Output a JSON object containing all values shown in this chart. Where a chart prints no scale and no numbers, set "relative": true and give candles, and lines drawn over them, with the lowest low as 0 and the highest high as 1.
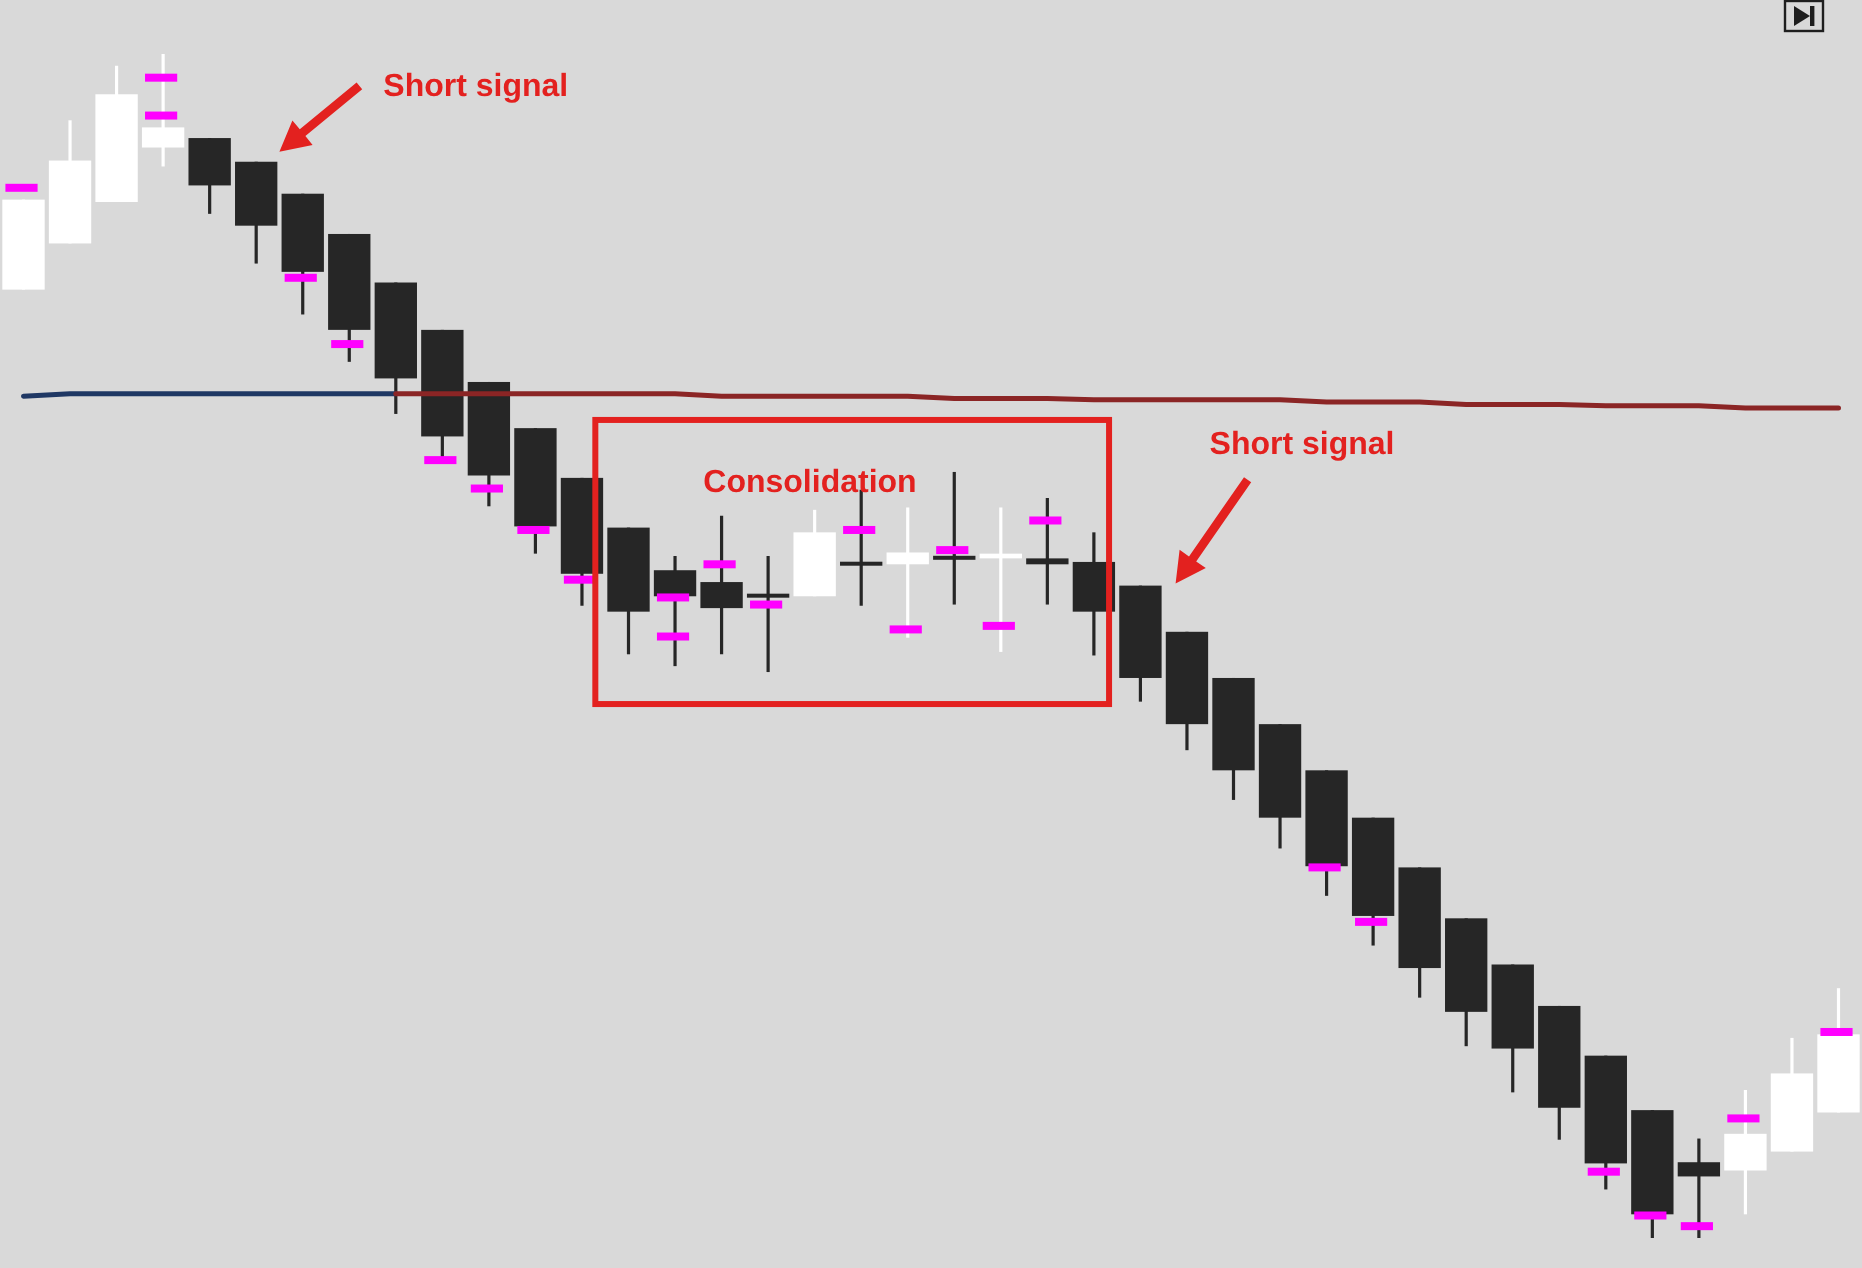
{
  "chart_data": {
    "type": "candlestick",
    "relative": true,
    "categories": [
      null,
      null,
      null,
      null,
      null,
      null,
      null,
      null,
      null,
      null,
      null,
      null,
      null,
      null,
      null,
      null,
      null,
      null,
      null,
      null,
      null,
      null,
      null,
      null,
      null,
      null,
      null,
      null,
      null,
      null,
      null,
      null,
      null,
      null,
      null,
      null,
      null,
      null,
      null,
      null
    ],
    "ohlc": [
      [
        0.801,
        0.877,
        0.801,
        0.877
      ],
      [
        0.84,
        0.944,
        0.84,
        0.91
      ],
      [
        0.875,
        0.99,
        0.875,
        0.966
      ],
      [
        0.921,
        1.0,
        0.905,
        0.938
      ],
      [
        0.929,
        0.929,
        0.865,
        0.889
      ],
      [
        0.909,
        0.909,
        0.823,
        0.855
      ],
      [
        0.882,
        0.882,
        0.78,
        0.816
      ],
      [
        0.848,
        0.848,
        0.74,
        0.767
      ],
      [
        0.807,
        0.807,
        0.696,
        0.726
      ],
      [
        0.767,
        0.767,
        0.657,
        0.677
      ],
      [
        0.723,
        0.723,
        0.618,
        0.644
      ],
      [
        0.684,
        0.684,
        0.578,
        0.601
      ],
      [
        0.642,
        0.642,
        0.534,
        0.561
      ],
      [
        0.6,
        0.6,
        0.493,
        0.529
      ],
      [
        0.564,
        0.576,
        0.483,
        0.542
      ],
      [
        0.554,
        0.61,
        0.493,
        0.532
      ],
      [
        0.544,
        0.576,
        0.478,
        0.541
      ],
      [
        0.542,
        0.615,
        0.542,
        0.596
      ],
      [
        0.571,
        0.632,
        0.534,
        0.568
      ],
      [
        0.569,
        0.617,
        0.507,
        0.579
      ],
      [
        0.576,
        0.647,
        0.535,
        0.573
      ],
      [
        0.574,
        0.617,
        0.495,
        0.578
      ],
      [
        0.574,
        0.625,
        0.535,
        0.569
      ],
      [
        0.571,
        0.596,
        0.492,
        0.529
      ],
      [
        0.551,
        0.551,
        0.453,
        0.473
      ],
      [
        0.512,
        0.512,
        0.412,
        0.434
      ],
      [
        0.473,
        0.473,
        0.37,
        0.395
      ],
      [
        0.434,
        0.434,
        0.329,
        0.355
      ],
      [
        0.395,
        0.395,
        0.289,
        0.314
      ],
      [
        0.355,
        0.355,
        0.247,
        0.272
      ],
      [
        0.313,
        0.313,
        0.203,
        0.228
      ],
      [
        0.27,
        0.27,
        0.162,
        0.191
      ],
      [
        0.231,
        0.231,
        0.123,
        0.16
      ],
      [
        0.196,
        0.196,
        0.083,
        0.11
      ],
      [
        0.154,
        0.154,
        0.041,
        0.063
      ],
      [
        0.108,
        0.108,
        0,
        0.02
      ],
      [
        0.064,
        0.084,
        0,
        0.052
      ],
      [
        0.057,
        0.125,
        0.02,
        0.088
      ],
      [
        0.073,
        0.169,
        0.073,
        0.139
      ],
      [
        0.106,
        0.211,
        0.106,
        0.172
      ]
    ],
    "colors": [
      "#ffffff",
      "#ffffff",
      "#ffffff",
      "#ffffff",
      "#262626",
      "#262626",
      "#262626",
      "#262626",
      "#262626",
      "#262626",
      "#262626",
      "#262626",
      "#262626",
      "#262626",
      "#262626",
      "#262626",
      "#262626",
      "#ffffff",
      "#262626",
      "#ffffff",
      "#262626",
      "#ffffff",
      "#262626",
      "#262626",
      "#262626",
      "#262626",
      "#262626",
      "#262626",
      "#262626",
      "#262626",
      "#262626",
      "#262626",
      "#262626",
      "#262626",
      "#262626",
      "#262626",
      "#262626",
      "#ffffff",
      "#ffffff",
      "#ffffff"
    ],
    "series": [
      {
        "type": "line",
        "color": "#1f3864",
        "values": [
          0.711,
          0.713,
          0.713,
          0.713,
          0.713,
          0.713,
          0.713,
          0.713,
          0.713,
          null,
          null,
          null,
          null,
          null,
          null,
          null,
          null,
          null,
          null,
          null,
          null,
          null,
          null,
          null,
          null,
          null,
          null,
          null,
          null,
          null,
          null,
          null,
          null,
          null,
          null,
          null,
          null,
          null,
          null,
          null
        ]
      },
      {
        "type": "line",
        "color": "#8b2525",
        "values": [
          null,
          null,
          null,
          null,
          null,
          null,
          null,
          null,
          0.713,
          0.713,
          0.713,
          0.713,
          0.713,
          0.713,
          0.713,
          0.711,
          0.711,
          0.711,
          0.711,
          0.711,
          0.709,
          0.709,
          0.709,
          0.708,
          0.708,
          0.708,
          0.708,
          0.708,
          0.706,
          0.706,
          0.706,
          0.704,
          0.704,
          0.704,
          0.703,
          0.703,
          0.703,
          0.701,
          0.701,
          0.701
        ]
      }
    ],
    "annotations": [
      "Short signal",
      "Consolidation",
      "Short signal"
    ]
  }
}
